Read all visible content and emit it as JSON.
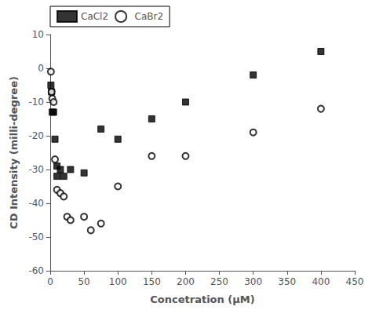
{
  "chart_data": {
    "type": "scatter",
    "xlabel": "Concetration (μM)",
    "ylabel": "CD Intensity (milli-degree)",
    "xlim": [
      0,
      450
    ],
    "ylim": [
      -60,
      10
    ],
    "xticks": [
      0,
      50,
      100,
      150,
      200,
      250,
      300,
      350,
      400,
      450
    ],
    "yticks": [
      -60,
      -50,
      -40,
      -30,
      -20,
      -10,
      0,
      10
    ],
    "grid": false,
    "legend": "upper left",
    "series": [
      {
        "name": "CaCl2",
        "color": "#000000",
        "marker": "square",
        "x": [
          1,
          2,
          3,
          5,
          7,
          10,
          10,
          15,
          20,
          30,
          50,
          75,
          100,
          150,
          200,
          300,
          400
        ],
        "values": [
          -5,
          -7,
          -13,
          -13,
          -21,
          -29,
          -32,
          -30,
          -32,
          -30,
          -31,
          -18,
          -21,
          -15,
          -10,
          -2,
          5
        ]
      },
      {
        "name": "CaBr2",
        "color": "#000000",
        "marker": "open_circle",
        "x": [
          1,
          2,
          3,
          5,
          7,
          10,
          15,
          20,
          25,
          30,
          50,
          60,
          75,
          100,
          150,
          200,
          300,
          400
        ],
        "values": [
          -1,
          -7,
          -9,
          -10,
          -27,
          -36,
          -37,
          -38,
          -44,
          -45,
          -44,
          -48,
          -46,
          -35,
          -26,
          -26,
          -19,
          -12
        ]
      }
    ]
  }
}
